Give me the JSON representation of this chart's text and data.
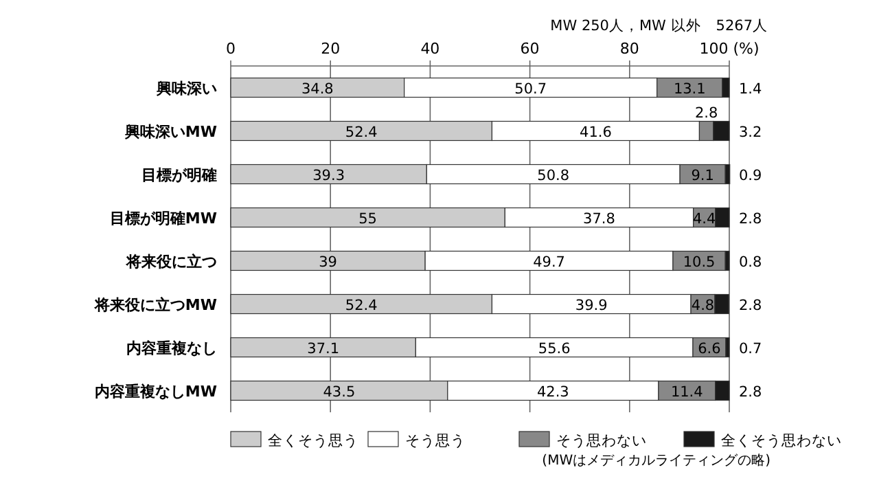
{
  "chart_data": {
    "type": "bar",
    "orientation": "horizontal",
    "stacked": true,
    "subtitle": "MW 250人，MW 以外　5267人",
    "categories": [
      "興味深い",
      "興味深いMW",
      "目標が明確",
      "目標が明確MW",
      "将来役に立つ",
      "将来役に立つMW",
      "内容重複なし",
      "内容重複なしMW"
    ],
    "series": [
      {
        "name": "全くそう思う",
        "color": "#cccccc",
        "values": [
          34.8,
          52.4,
          39.3,
          55,
          39,
          52.4,
          37.1,
          43.5
        ]
      },
      {
        "name": "そう思う",
        "color": "#ffffff",
        "values": [
          50.7,
          41.6,
          50.8,
          37.8,
          49.7,
          39.9,
          55.6,
          42.3
        ]
      },
      {
        "name": "そう思わない",
        "color": "#888888",
        "values": [
          13.1,
          2.8,
          9.1,
          4.4,
          10.5,
          4.8,
          6.6,
          11.4
        ]
      },
      {
        "name": "全くそう思わない",
        "color": "#1a1a1a",
        "values": [
          1.4,
          3.2,
          0.9,
          2.8,
          0.8,
          2.8,
          0.7,
          2.8
        ]
      }
    ],
    "xlim": [
      0,
      100
    ],
    "xticks": [
      0,
      20,
      40,
      60,
      80,
      {
        "value": 100,
        "label": "100 (%)"
      }
    ],
    "grid": "x",
    "data_labels": true,
    "legend": "bottom",
    "annotations": [
      "(MWはメディカルライティングの略)"
    ]
  }
}
